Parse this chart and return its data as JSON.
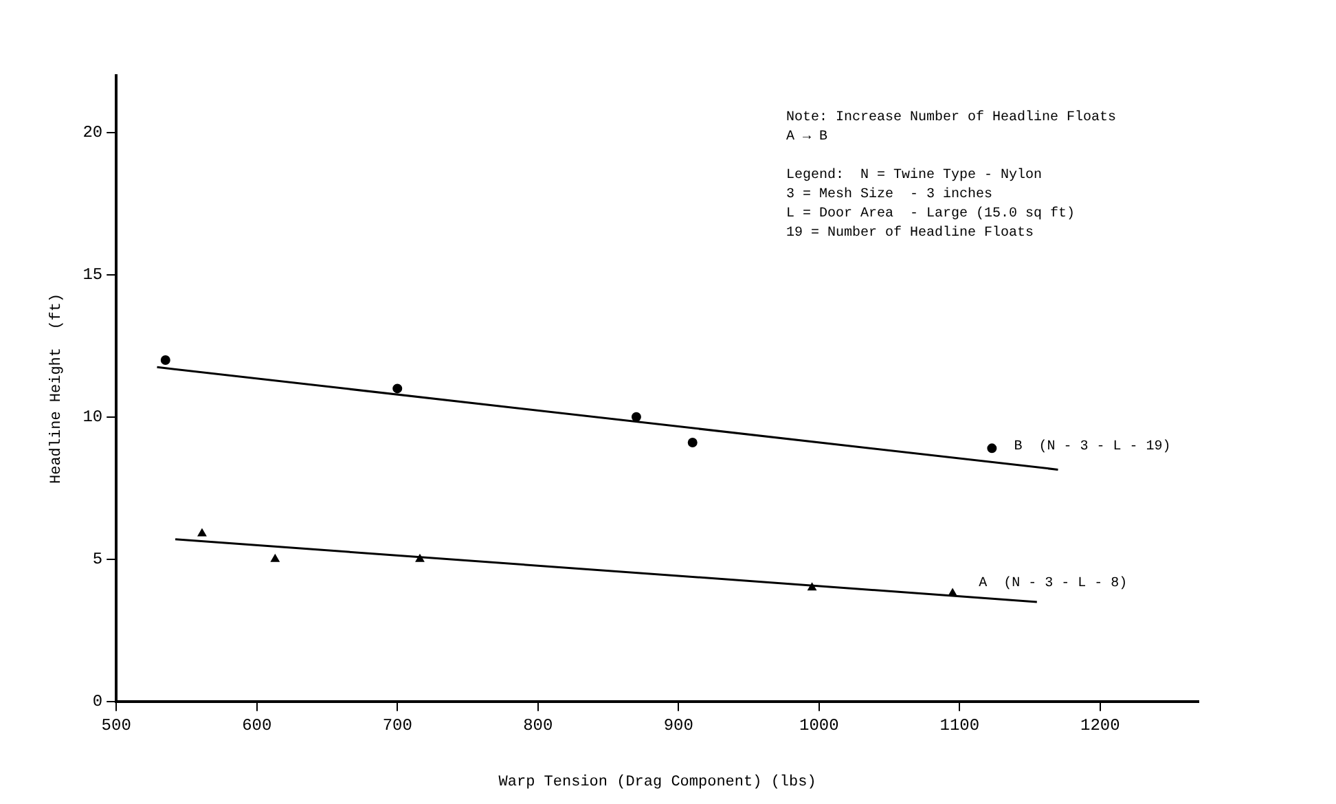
{
  "chart_data": {
    "type": "scatter",
    "xlabel": "Warp Tension (Drag Component) (lbs)",
    "ylabel": "Headline Height  (ft)",
    "xlim": [
      500,
      1270
    ],
    "xticks": [
      500,
      600,
      700,
      800,
      900,
      1000,
      1100,
      1200
    ],
    "ylim": [
      0,
      22
    ],
    "yticks": [
      0,
      5,
      10,
      15,
      20
    ],
    "grid": false,
    "legend": false,
    "series": [
      {
        "type": "scatter",
        "marker": "circle",
        "color": "#000000",
        "x": [
          535,
          700,
          870,
          910,
          1123
        ],
        "values": [
          12.0,
          11.0,
          10.0,
          9.1,
          8.9
        ]
      },
      {
        "type": "scatter",
        "marker": "triangle",
        "color": "#000000",
        "x": [
          561,
          613,
          716,
          995,
          1095
        ],
        "values": [
          5.9,
          5.0,
          5.0,
          4.0,
          3.8
        ]
      },
      {
        "type": "line",
        "marker": "none",
        "color": "#000000",
        "x": [
          529,
          1170
        ],
        "values": [
          11.75,
          8.15
        ]
      },
      {
        "type": "line",
        "marker": "none",
        "color": "#000000",
        "x": [
          542,
          1155
        ],
        "values": [
          5.7,
          3.5
        ]
      }
    ],
    "annotations": [
      "Note: Increase Number of Headline Floats",
      "A → B",
      "Legend:  N = Twine Type - Nylon",
      "3 = Mesh Size  - 3 inches",
      "L = Door Area  - Large (15.0 sq ft)",
      "19 = Number of Headline Floats",
      {
        "text": "B  (N - 3 - L - 19)",
        "x": 1125,
        "y": 8.6
      },
      {
        "text": "A  (N - 3 - L - 8)",
        "x": 1100,
        "y": 3.8
      }
    ]
  }
}
